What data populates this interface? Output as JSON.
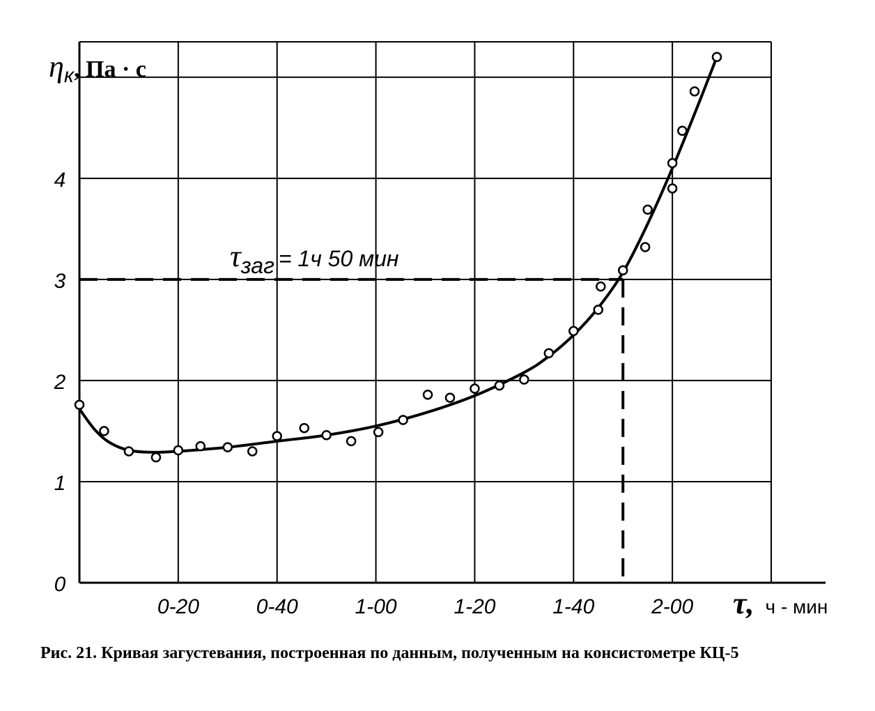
{
  "chart_data": {
    "type": "scatter",
    "ylabel_symbol": "η",
    "ylabel_sub": "к",
    "ylabel_unit": ", Па · с",
    "xlabel_symbol": "τ,",
    "xlabel_unit": "ч - мин",
    "y_ticks": [
      "0",
      "1",
      "2",
      "3",
      "4"
    ],
    "x_ticks": [
      "0-20",
      "0-40",
      "1-00",
      "1-20",
      "1-40",
      "2-00"
    ],
    "xlim_min": [
      0,
      140
    ],
    "ylim": [
      0,
      5.35
    ],
    "grid": true,
    "annotation_symbol": "τ",
    "annotation_sub": "заг",
    "annotation_text": "= 1ч 50 мин",
    "threshold": {
      "x_min": 110,
      "y": 3
    },
    "points": [
      {
        "x": 0,
        "y": 1.76
      },
      {
        "x": 5,
        "y": 1.5
      },
      {
        "x": 10,
        "y": 1.3
      },
      {
        "x": 15.5,
        "y": 1.24
      },
      {
        "x": 20,
        "y": 1.31
      },
      {
        "x": 24.5,
        "y": 1.35
      },
      {
        "x": 30,
        "y": 1.34
      },
      {
        "x": 35,
        "y": 1.3
      },
      {
        "x": 40,
        "y": 1.45
      },
      {
        "x": 45.5,
        "y": 1.53
      },
      {
        "x": 50,
        "y": 1.46
      },
      {
        "x": 55,
        "y": 1.4
      },
      {
        "x": 60.5,
        "y": 1.49
      },
      {
        "x": 65.5,
        "y": 1.61
      },
      {
        "x": 70.5,
        "y": 1.86
      },
      {
        "x": 75,
        "y": 1.83
      },
      {
        "x": 80,
        "y": 1.92
      },
      {
        "x": 85,
        "y": 1.95
      },
      {
        "x": 90,
        "y": 2.01
      },
      {
        "x": 95,
        "y": 2.27
      },
      {
        "x": 100,
        "y": 2.49
      },
      {
        "x": 105,
        "y": 2.7
      },
      {
        "x": 105.5,
        "y": 2.93
      },
      {
        "x": 110,
        "y": 3.09
      },
      {
        "x": 114.5,
        "y": 3.32
      },
      {
        "x": 115,
        "y": 3.69
      },
      {
        "x": 120,
        "y": 4.15
      },
      {
        "x": 120,
        "y": 3.9
      },
      {
        "x": 122,
        "y": 4.47
      },
      {
        "x": 124.5,
        "y": 4.86
      },
      {
        "x": 129,
        "y": 5.2
      }
    ],
    "curve": [
      {
        "x": 0,
        "y": 1.72
      },
      {
        "x": 3,
        "y": 1.52
      },
      {
        "x": 6,
        "y": 1.39
      },
      {
        "x": 10,
        "y": 1.31
      },
      {
        "x": 15,
        "y": 1.29
      },
      {
        "x": 20,
        "y": 1.3
      },
      {
        "x": 30,
        "y": 1.34
      },
      {
        "x": 40,
        "y": 1.4
      },
      {
        "x": 50,
        "y": 1.46
      },
      {
        "x": 60,
        "y": 1.55
      },
      {
        "x": 70,
        "y": 1.68
      },
      {
        "x": 80,
        "y": 1.85
      },
      {
        "x": 90,
        "y": 2.08
      },
      {
        "x": 95,
        "y": 2.24
      },
      {
        "x": 100,
        "y": 2.45
      },
      {
        "x": 105,
        "y": 2.72
      },
      {
        "x": 110,
        "y": 3.07
      },
      {
        "x": 115,
        "y": 3.55
      },
      {
        "x": 120,
        "y": 4.1
      },
      {
        "x": 125,
        "y": 4.7
      },
      {
        "x": 129,
        "y": 5.2
      }
    ]
  },
  "caption": "Рис. 21. Кривая загустевания, построенная по данным, полученным на консистометре КЦ-5"
}
